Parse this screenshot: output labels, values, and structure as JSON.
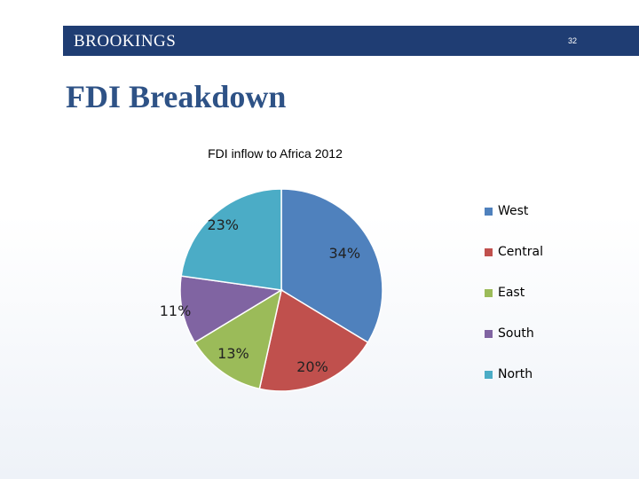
{
  "header": {
    "brand": "BROOKINGS",
    "page_number": "32"
  },
  "slide_title": "FDI Breakdown",
  "chart_data": {
    "type": "pie",
    "title": "FDI inflow to Africa 2012",
    "categories": [
      "West",
      "Central",
      "East",
      "South",
      "North"
    ],
    "values": [
      34,
      20,
      13,
      11,
      23
    ],
    "labels": [
      "34%",
      "20%",
      "13%",
      "11%",
      "23%"
    ],
    "colors": [
      "#4f81bd",
      "#c0504d",
      "#9bbb59",
      "#8064a2",
      "#4bacc6"
    ],
    "legend_position": "right"
  }
}
